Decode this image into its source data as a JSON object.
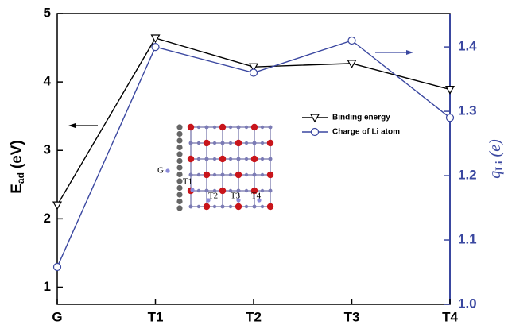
{
  "chart_data": {
    "type": "line",
    "ylabel": {
      "main": "E",
      "sub": "ad",
      "unit": "(eV)"
    },
    "y2label": {
      "main": "q",
      "sub": "Li",
      "unit": "(e)"
    },
    "categories": [
      "G",
      "T1",
      "T2",
      "T3",
      "T4"
    ],
    "series": [
      {
        "name": "Binding energy",
        "color": "#000000",
        "marker": "triangle-down",
        "values": [
          2.2,
          4.64,
          4.22,
          4.27,
          3.89
        ]
      },
      {
        "name": "Charge of Li atom",
        "color": "#3a47a0",
        "marker": "circle",
        "axis": "y2",
        "values": [
          1.058,
          1.4,
          1.36,
          1.41,
          1.29
        ]
      }
    ],
    "ylim": [
      0.75,
      5
    ],
    "yticks": [
      1,
      2,
      3,
      4,
      5
    ],
    "y2lim": [
      1.0,
      1.452
    ],
    "y2ticks": [
      {
        "value": 1,
        "label": "1.0"
      },
      1.1,
      1.2,
      1.3,
      1.4
    ],
    "legend": "center",
    "inset": {
      "labels": [
        "G",
        "T1",
        "T2",
        "T3",
        "T4"
      ]
    }
  }
}
